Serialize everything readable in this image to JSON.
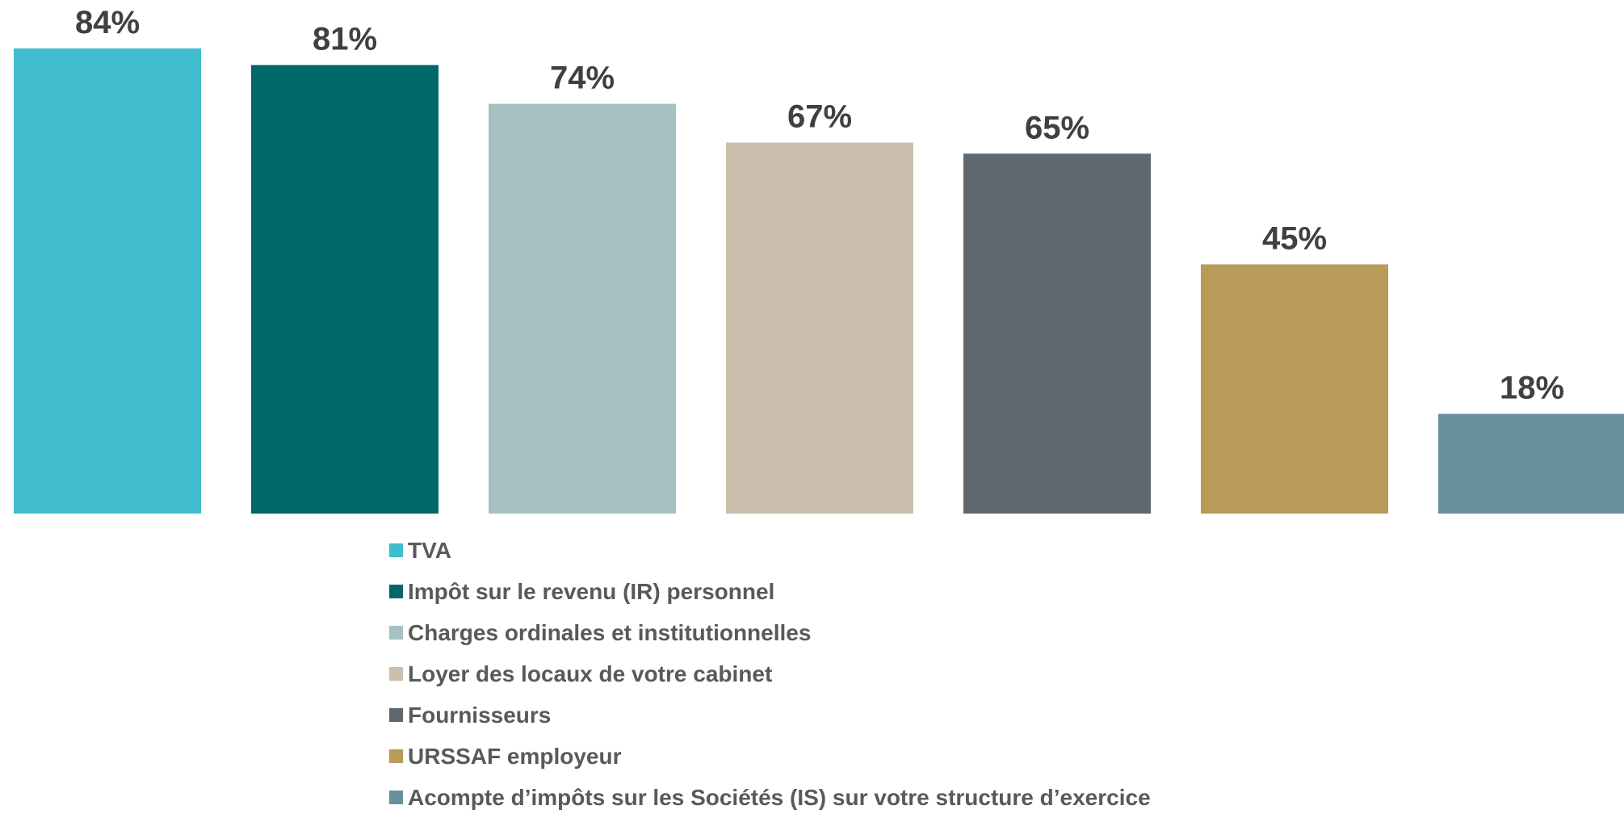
{
  "chart_data": {
    "type": "bar",
    "categories": [
      "TVA",
      "Impôt sur le revenu (IR) personnel",
      "Charges ordinales et institutionnelles",
      "Loyer des locaux de votre cabinet",
      "Fournisseurs",
      "URSSAF employeur",
      "Acompte d’impôts sur les Sociétés (IS) sur votre structure d’exercice"
    ],
    "values": [
      84,
      81,
      74,
      67,
      65,
      45,
      18
    ],
    "data_labels": [
      "84%",
      "81%",
      "74%",
      "67%",
      "65%",
      "45%",
      "18%"
    ],
    "colors": [
      "#3FBCCE",
      "#006868",
      "#A6C1C1",
      "#CBC0AE",
      "#5E686E",
      "#B89A59",
      "#67909C"
    ],
    "ylim": [
      0,
      84
    ],
    "grid": false,
    "legend_position": "bottom",
    "title": "",
    "xlabel": "",
    "ylabel": ""
  }
}
